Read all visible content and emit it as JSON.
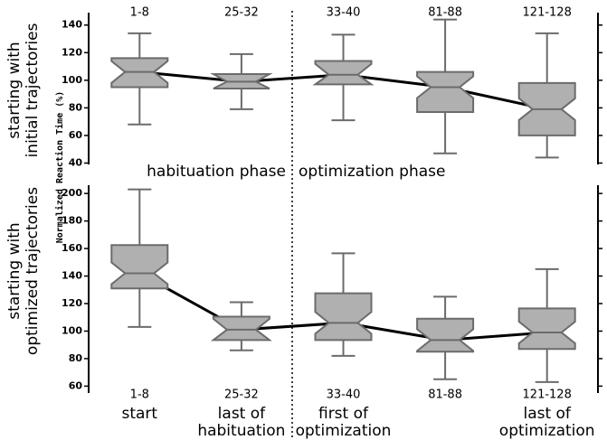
{
  "ylabel": "Normalized Reaction Time (%)",
  "chart_data": [
    {
      "type": "box",
      "row_label": [
        "starting with",
        "initial trajectories"
      ],
      "categories": [
        "1-8",
        "25-32",
        "33-40",
        "81-88",
        "121-128"
      ],
      "annotations": [
        "habituation phase",
        "optimization phase"
      ],
      "boxes": [
        {
          "whisker_low": 68,
          "q1": 95,
          "median": 106,
          "q3": 116,
          "whisker_high": 134
        },
        {
          "whisker_low": 79,
          "q1": 94,
          "median": 99,
          "q3": 104.5,
          "whisker_high": 119
        },
        {
          "whisker_low": 71,
          "q1": 97,
          "median": 104,
          "q3": 114,
          "whisker_high": 133
        },
        {
          "whisker_low": 47,
          "q1": 77,
          "median": 95,
          "q3": 106,
          "whisker_high": 144
        },
        {
          "whisker_low": 44,
          "q1": 60,
          "median": 79,
          "q3": 98,
          "whisker_high": 134
        }
      ],
      "color": "#b0b0b0",
      "ylim": [
        39,
        149
      ],
      "yticks": [
        40,
        60,
        80,
        100,
        120,
        140
      ]
    },
    {
      "type": "box",
      "row_label": [
        "starting with",
        "optimized trajectories"
      ],
      "categories": [
        "1-8",
        "25-32",
        "33-40",
        "81-88",
        "121-128"
      ],
      "category_descriptions": [
        [
          "start"
        ],
        [
          "last of",
          "habituation"
        ],
        [
          "first of",
          "optimization"
        ],
        [],
        [
          "last of",
          "optimization"
        ]
      ],
      "boxes": [
        {
          "whisker_low": 103,
          "q1": 131,
          "median": 142,
          "q3": 162.5,
          "whisker_high": 203
        },
        {
          "whisker_low": 86,
          "q1": 93.5,
          "median": 101,
          "q3": 110.5,
          "whisker_high": 121
        },
        {
          "whisker_low": 82,
          "q1": 93.5,
          "median": 106,
          "q3": 127.5,
          "whisker_high": 156.5
        },
        {
          "whisker_low": 65,
          "q1": 85,
          "median": 93.5,
          "q3": 109,
          "whisker_high": 125
        },
        {
          "whisker_low": 63,
          "q1": 87,
          "median": 99,
          "q3": 116.5,
          "whisker_high": 145
        }
      ],
      "color": "#b0b0b0",
      "ylim": [
        55,
        206
      ],
      "yticks": [
        60,
        80,
        100,
        120,
        140,
        160,
        180,
        200
      ]
    }
  ]
}
